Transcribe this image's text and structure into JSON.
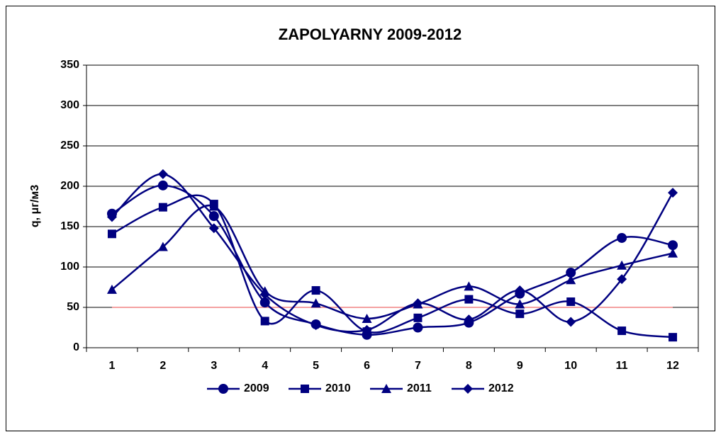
{
  "chart_data": {
    "type": "line",
    "title": "ZAPOLYARNY  2009-2012",
    "y_label": "q, μг/м3",
    "categories": [
      "1",
      "2",
      "3",
      "4",
      "5",
      "6",
      "7",
      "8",
      "9",
      "10",
      "11",
      "12"
    ],
    "series": [
      {
        "name": "2009",
        "color": "#000080",
        "marker": "circle",
        "values": [
          166,
          201,
          163,
          56,
          29,
          16,
          25,
          31,
          67,
          93,
          136,
          127
        ]
      },
      {
        "name": "2010",
        "color": "#000080",
        "marker": "square",
        "values": [
          141,
          174,
          178,
          33,
          71,
          20,
          37,
          60,
          42,
          57,
          21,
          13
        ]
      },
      {
        "name": "2011",
        "color": "#000080",
        "marker": "triangle",
        "values": [
          72,
          125,
          175,
          70,
          55,
          36,
          54,
          76,
          54,
          84,
          102,
          117
        ]
      },
      {
        "name": "2012",
        "color": "#000080",
        "marker": "diamond",
        "values": [
          162,
          215,
          148,
          66,
          28,
          22,
          55,
          35,
          71,
          32,
          85,
          192
        ]
      }
    ],
    "reference_line": {
      "value": 50,
      "color": "#f4a0a0"
    },
    "ylim": [
      0,
      350
    ],
    "yticks": [
      0,
      50,
      100,
      150,
      200,
      250,
      300,
      350
    ],
    "grid": true,
    "legend": "bottom",
    "smooth": true
  }
}
